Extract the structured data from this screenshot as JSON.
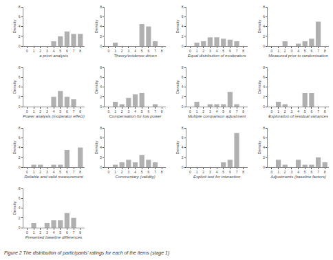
{
  "chart_data": [
    {
      "type": "bar",
      "xlabel": "a priori analysis",
      "ylabel": "Density",
      "x": [
        0,
        1,
        2,
        3,
        4,
        5,
        6,
        7,
        8
      ],
      "values": [
        0,
        0,
        0,
        0,
        1,
        2,
        3,
        2.5,
        2.5
      ],
      "color": "#b0b0b0",
      "xlim": [
        -0.6,
        8.6
      ],
      "xticks": [
        0,
        1,
        2,
        3,
        4,
        5,
        6,
        7,
        8
      ],
      "ylim": [
        0,
        8
      ],
      "yticks": [
        0,
        2,
        4,
        6,
        8
      ],
      "grid": false
    },
    {
      "type": "bar",
      "xlabel": "Theory/evidence driven",
      "ylabel": "Density",
      "x": [
        0,
        1,
        2,
        3,
        4,
        5,
        6,
        7,
        8
      ],
      "values": [
        0,
        0.7,
        0,
        0,
        0,
        4.5,
        4,
        1,
        0
      ],
      "color": "#b0b0b0",
      "xlim": [
        -0.6,
        8.6
      ],
      "xticks": [
        0,
        1,
        2,
        3,
        4,
        5,
        6,
        7,
        8
      ],
      "ylim": [
        0,
        8
      ],
      "yticks": [
        0,
        2,
        4,
        6,
        8
      ],
      "grid": false
    },
    {
      "type": "bar",
      "xlabel": "Equal distribution of moderators",
      "ylabel": "Density",
      "x": [
        0,
        1,
        2,
        3,
        4,
        5,
        6,
        7,
        8
      ],
      "values": [
        0,
        0.7,
        1.0,
        1.8,
        1.8,
        1.5,
        1.3,
        1.0,
        0
      ],
      "color": "#b0b0b0",
      "xlim": [
        -0.6,
        8.6
      ],
      "xticks": [
        0,
        1,
        2,
        3,
        4,
        5,
        6,
        7,
        8
      ],
      "ylim": [
        0,
        8
      ],
      "yticks": [
        0,
        2,
        4,
        6,
        8
      ],
      "grid": false
    },
    {
      "type": "bar",
      "xlabel": "Measured prior to randomisation",
      "ylabel": "Density",
      "x": [
        0,
        1,
        2,
        3,
        4,
        5,
        6,
        7,
        8
      ],
      "values": [
        0,
        0,
        1.0,
        0,
        0.5,
        1.0,
        1.5,
        5.0,
        0
      ],
      "color": "#b0b0b0",
      "xlim": [
        -0.6,
        8.6
      ],
      "xticks": [
        0,
        1,
        2,
        3,
        4,
        5,
        6,
        7,
        8
      ],
      "ylim": [
        0,
        8
      ],
      "yticks": [
        0,
        2,
        4,
        6,
        8
      ],
      "grid": false
    },
    {
      "type": "bar",
      "xlabel": "Power analysis (moderator effect)",
      "ylabel": "Density",
      "x": [
        0,
        1,
        2,
        3,
        4,
        5,
        6,
        7,
        8
      ],
      "values": [
        0,
        0,
        0,
        0,
        2,
        3.2,
        2,
        1.5,
        0
      ],
      "color": "#b0b0b0",
      "xlim": [
        -0.6,
        8.6
      ],
      "xticks": [
        0,
        1,
        2,
        3,
        4,
        5,
        6,
        7,
        8
      ],
      "ylim": [
        0,
        8
      ],
      "yticks": [
        0,
        2,
        4,
        6,
        8
      ],
      "grid": false
    },
    {
      "type": "bar",
      "xlabel": "Compensation for low power",
      "ylabel": "Density",
      "x": [
        0,
        1,
        2,
        3,
        4,
        5,
        6,
        7,
        8
      ],
      "values": [
        0,
        1.0,
        0.5,
        1.8,
        2.5,
        2.8,
        0,
        0.5,
        0
      ],
      "color": "#b0b0b0",
      "xlim": [
        -0.6,
        8.6
      ],
      "xticks": [
        0,
        1,
        2,
        3,
        4,
        5,
        6,
        7,
        8
      ],
      "ylim": [
        0,
        8
      ],
      "yticks": [
        0,
        2,
        4,
        6,
        8
      ],
      "grid": false
    },
    {
      "type": "bar",
      "xlabel": "Multiple comparison adjustment",
      "ylabel": "Density",
      "x": [
        0,
        1,
        2,
        3,
        4,
        5,
        6,
        7,
        8
      ],
      "values": [
        0,
        1.0,
        0,
        0.5,
        0.5,
        0.5,
        3.0,
        0.5,
        0
      ],
      "color": "#b0b0b0",
      "xlim": [
        -0.6,
        8.6
      ],
      "xticks": [
        0,
        1,
        2,
        3,
        4,
        5,
        6,
        7,
        8
      ],
      "ylim": [
        0,
        8
      ],
      "yticks": [
        0,
        2,
        4,
        6,
        8
      ],
      "grid": false
    },
    {
      "type": "bar",
      "xlabel": "Exploration of residual variances",
      "ylabel": "Density",
      "x": [
        0,
        1,
        2,
        3,
        4,
        5,
        6,
        7,
        8
      ],
      "values": [
        0,
        1.0,
        0.5,
        0,
        0,
        2.8,
        2.8,
        0,
        0
      ],
      "color": "#b0b0b0",
      "xlim": [
        -0.6,
        8.6
      ],
      "xticks": [
        0,
        1,
        2,
        3,
        4,
        5,
        6,
        7,
        8
      ],
      "ylim": [
        0,
        8
      ],
      "yticks": [
        0,
        2,
        4,
        6,
        8
      ],
      "grid": false
    },
    {
      "type": "bar",
      "xlabel": "Reliable and valid measurement",
      "ylabel": "Density",
      "x": [
        0,
        1,
        2,
        3,
        4,
        5,
        6,
        7,
        8
      ],
      "values": [
        0,
        0.5,
        0.5,
        0,
        0.5,
        0.5,
        3.5,
        0,
        4.0
      ],
      "color": "#b0b0b0",
      "xlim": [
        -0.6,
        8.6
      ],
      "xticks": [
        0,
        1,
        2,
        3,
        4,
        5,
        6,
        7,
        8
      ],
      "ylim": [
        0,
        8
      ],
      "yticks": [
        0,
        2,
        4,
        6,
        8
      ],
      "grid": false
    },
    {
      "type": "bar",
      "xlabel": "Commentary (validity)",
      "ylabel": "Density",
      "x": [
        0,
        1,
        2,
        3,
        4,
        5,
        6,
        7,
        8
      ],
      "values": [
        0,
        0.5,
        1.0,
        1.5,
        1.0,
        2.5,
        1.5,
        1.0,
        0
      ],
      "color": "#b0b0b0",
      "xlim": [
        -0.6,
        8.6
      ],
      "xticks": [
        0,
        1,
        2,
        3,
        4,
        5,
        6,
        7,
        8
      ],
      "ylim": [
        0,
        8
      ],
      "yticks": [
        0,
        2,
        4,
        6,
        8
      ],
      "grid": false
    },
    {
      "type": "bar",
      "xlabel": "Explicit test for interaction",
      "ylabel": "Density",
      "x": [
        0,
        1,
        2,
        3,
        4,
        5,
        6,
        7,
        8
      ],
      "values": [
        0,
        0,
        0,
        0,
        0,
        1.0,
        1.5,
        7.0,
        0
      ],
      "color": "#b0b0b0",
      "xlim": [
        -0.6,
        8.6
      ],
      "xticks": [
        0,
        1,
        2,
        3,
        4,
        5,
        6,
        7,
        8
      ],
      "ylim": [
        0,
        8
      ],
      "yticks": [
        0,
        2,
        4,
        6,
        8
      ],
      "grid": false
    },
    {
      "type": "bar",
      "xlabel": "Adjustments (baseline factors)",
      "ylabel": "Density",
      "x": [
        0,
        1,
        2,
        3,
        4,
        5,
        6,
        7,
        8
      ],
      "values": [
        0,
        1.5,
        0.5,
        0,
        1.5,
        0.5,
        0.5,
        2.0,
        1.0
      ],
      "color": "#b0b0b0",
      "xlim": [
        -0.6,
        8.6
      ],
      "xticks": [
        0,
        1,
        2,
        3,
        4,
        5,
        6,
        7,
        8
      ],
      "ylim": [
        0,
        8
      ],
      "yticks": [
        0,
        2,
        4,
        6,
        8
      ],
      "grid": false
    },
    {
      "type": "bar",
      "xlabel": "Presented baseline differences",
      "ylabel": "Density",
      "x": [
        0,
        1,
        2,
        3,
        4,
        5,
        6,
        7,
        8
      ],
      "values": [
        0,
        1.0,
        0,
        1.0,
        1.5,
        1.5,
        3.0,
        2.0,
        0
      ],
      "color": "#b0b0b0",
      "xlim": [
        -0.6,
        8.6
      ],
      "xticks": [
        0,
        1,
        2,
        3,
        4,
        5,
        6,
        7,
        8
      ],
      "ylim": [
        0,
        8
      ],
      "yticks": [
        0,
        2,
        4,
        6,
        8
      ],
      "grid": false
    }
  ],
  "caption": "Figure 2 The distribution of participants' ratings for each of the items (stage 1)"
}
